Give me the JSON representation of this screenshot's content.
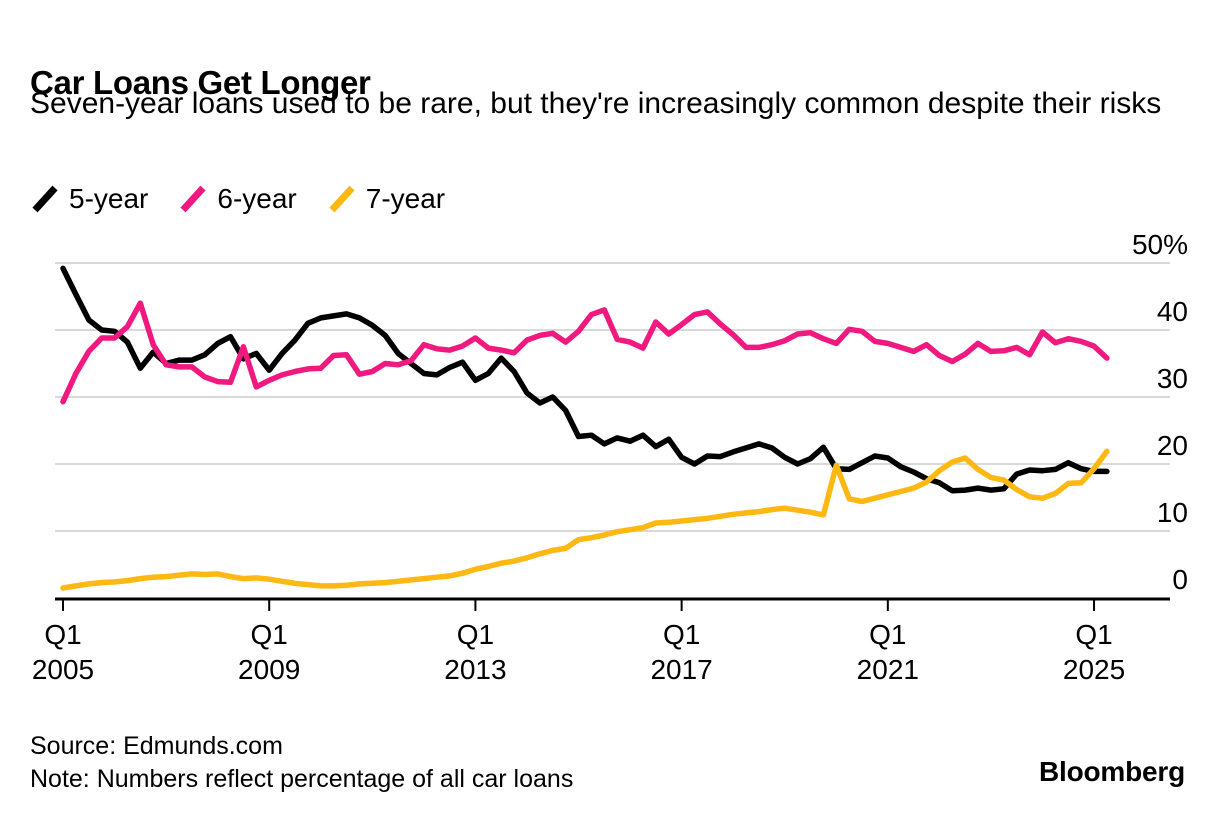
{
  "chart_data": {
    "type": "line",
    "title": "Car Loans Get Longer",
    "subtitle": "Seven-year loans used to be rare, but they're increasingly common despite their risks",
    "x_unit": "quarter",
    "x_start": "Q1 2005",
    "x_end": "Q2 2025",
    "grid": "horizontal",
    "gridline_color": "#d9d9d9",
    "axis_color": "#000000",
    "legend_position": "top-left",
    "y_axis": {
      "min": 0,
      "max": 50,
      "unit": "%",
      "tick_values": [
        50,
        40,
        30,
        20,
        10,
        0
      ],
      "tick_labels": [
        "50%",
        "40",
        "30",
        "20",
        "10",
        "0"
      ]
    },
    "x_axis": {
      "ticks": [
        {
          "quarter_index": 0,
          "line1": "Q1",
          "line2": "2005"
        },
        {
          "quarter_index": 16,
          "line1": "Q1",
          "line2": "2009"
        },
        {
          "quarter_index": 32,
          "line1": "Q1",
          "line2": "2013"
        },
        {
          "quarter_index": 48,
          "line1": "Q1",
          "line2": "2017"
        },
        {
          "quarter_index": 64,
          "line1": "Q1",
          "line2": "2021"
        },
        {
          "quarter_index": 80,
          "line1": "Q1",
          "line2": "2025"
        }
      ]
    },
    "series": [
      {
        "name": "5-year",
        "color": "#000000",
        "values": [
          49.2,
          45.3,
          41.5,
          40.0,
          39.8,
          38.2,
          34.3,
          36.7,
          35.0,
          35.5,
          35.5,
          36.3,
          38.0,
          39.0,
          35.7,
          36.5,
          34.0,
          36.5,
          38.5,
          41.0,
          41.8,
          42.1,
          42.4,
          41.8,
          40.7,
          39.2,
          36.5,
          35.0,
          33.5,
          33.3,
          34.4,
          35.2,
          32.5,
          33.5,
          35.8,
          33.8,
          30.6,
          29.1,
          30.0,
          28.0,
          24.1,
          24.3,
          23.0,
          23.9,
          23.4,
          24.3,
          22.6,
          23.7,
          21.0,
          20.0,
          21.2,
          21.1,
          21.8,
          22.4,
          23.0,
          22.4,
          21.0,
          20.0,
          20.8,
          22.5,
          19.3,
          19.2,
          20.2,
          21.2,
          20.9,
          19.6,
          18.8,
          17.8,
          17.2,
          16.0,
          16.1,
          16.4,
          16.1,
          16.3,
          18.5,
          19.1,
          19.0,
          19.2,
          20.2,
          19.3,
          18.9,
          18.9
        ]
      },
      {
        "name": "6-year",
        "color": "#f0197f",
        "values": [
          29.3,
          33.5,
          36.8,
          38.8,
          38.8,
          40.5,
          44.0,
          37.8,
          34.8,
          34.5,
          34.5,
          33.0,
          32.3,
          32.2,
          37.5,
          31.5,
          32.5,
          33.3,
          33.8,
          34.2,
          34.3,
          36.2,
          36.3,
          33.4,
          33.8,
          35.0,
          34.8,
          35.4,
          37.8,
          37.2,
          37.0,
          37.6,
          38.8,
          37.3,
          37.0,
          36.6,
          38.5,
          39.2,
          39.5,
          38.2,
          39.8,
          42.3,
          43.0,
          38.6,
          38.2,
          37.3,
          41.2,
          39.4,
          40.8,
          42.3,
          42.7,
          40.9,
          39.3,
          37.4,
          37.4,
          37.8,
          38.4,
          39.4,
          39.6,
          38.7,
          38.0,
          40.1,
          39.8,
          38.3,
          38.0,
          37.4,
          36.8,
          37.8,
          36.2,
          35.3,
          36.4,
          38.0,
          36.8,
          36.9,
          37.4,
          36.3,
          39.7,
          38.1,
          38.7,
          38.3,
          37.6,
          35.8
        ]
      },
      {
        "name": "7-year",
        "color": "#fdb813",
        "values": [
          1.5,
          1.8,
          2.1,
          2.3,
          2.4,
          2.6,
          2.9,
          3.1,
          3.2,
          3.4,
          3.6,
          3.5,
          3.6,
          3.2,
          2.9,
          3.0,
          2.8,
          2.5,
          2.2,
          2.0,
          1.8,
          1.8,
          1.9,
          2.1,
          2.2,
          2.3,
          2.5,
          2.7,
          2.9,
          3.1,
          3.3,
          3.7,
          4.3,
          4.7,
          5.2,
          5.5,
          6.0,
          6.6,
          7.1,
          7.4,
          8.7,
          9.0,
          9.4,
          9.9,
          10.2,
          10.5,
          11.2,
          11.3,
          11.5,
          11.7,
          11.9,
          12.2,
          12.5,
          12.7,
          12.9,
          13.2,
          13.4,
          13.1,
          12.8,
          12.4,
          19.8,
          14.8,
          14.4,
          14.9,
          15.4,
          15.9,
          16.4,
          17.3,
          19.0,
          20.3,
          20.9,
          19.2,
          18.0,
          17.6,
          16.2,
          15.1,
          14.9,
          15.6,
          17.1,
          17.2,
          19.3,
          21.9
        ]
      }
    ]
  },
  "footer": {
    "source": "Source: Edmunds.com",
    "note": "Note: Numbers reflect percentage of all car loans",
    "brand": "Bloomberg"
  }
}
